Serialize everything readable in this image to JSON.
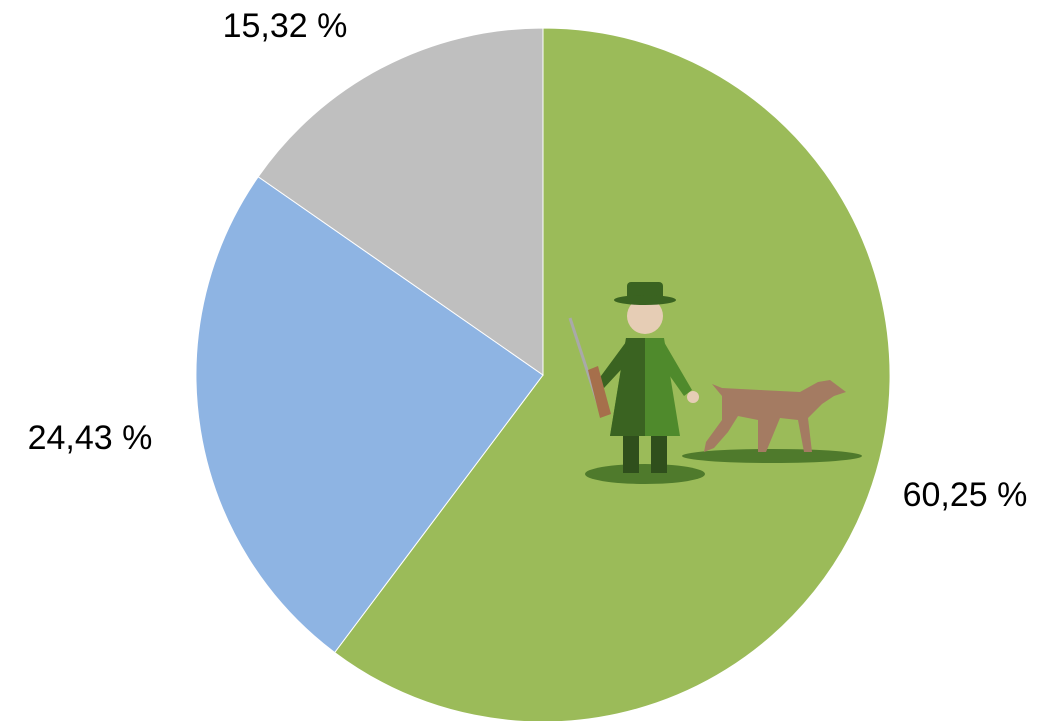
{
  "chart_data": {
    "type": "pie",
    "categories": [
      null,
      null,
      null
    ],
    "values": [
      60.25,
      24.43,
      15.32
    ],
    "value_labels": [
      "60,25 %",
      "24,43 %",
      "15,32 %"
    ],
    "colors": [
      "#9bbb59",
      "#8eb4e3",
      "#bfbfbf"
    ]
  }
}
